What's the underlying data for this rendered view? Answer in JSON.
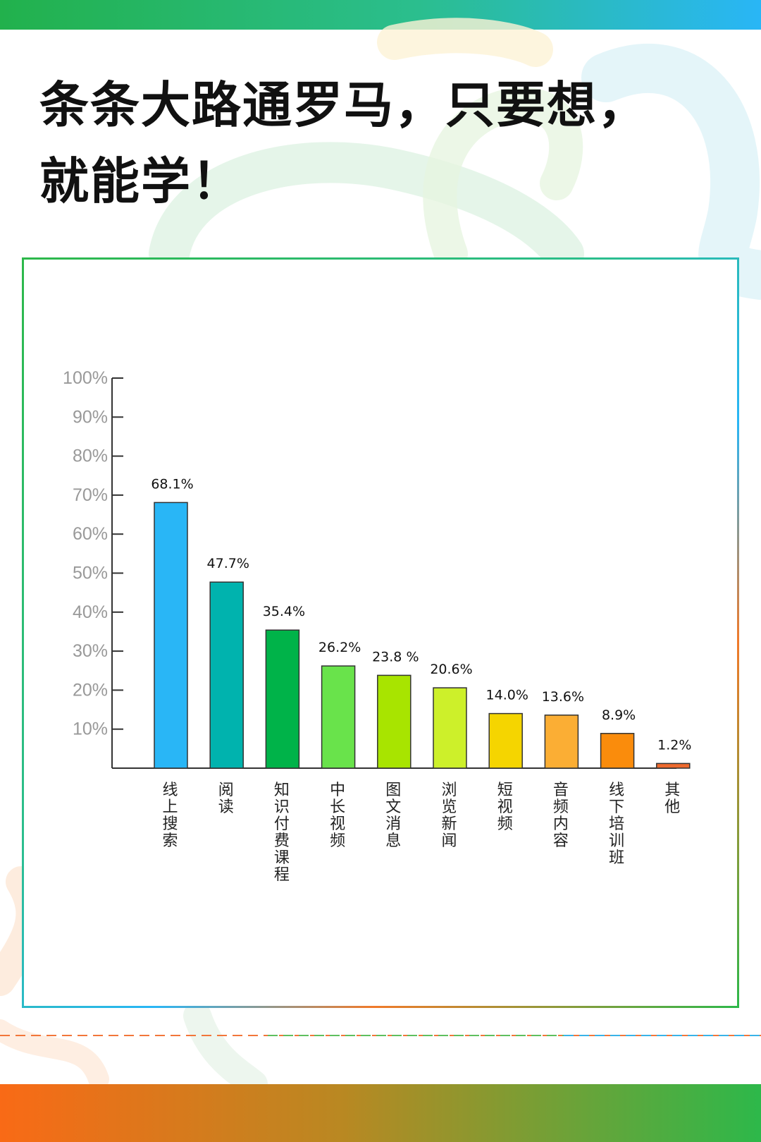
{
  "headline": {
    "line1": "条条大路通罗马，只要想，",
    "line2": "就能学！"
  },
  "chart_data": {
    "type": "bar",
    "categories": [
      "线上搜索",
      "阅读",
      "知识付费课程",
      "中长视频",
      "图文消息",
      "浏览新闻",
      "短视频",
      "音频内容",
      "线下培训班",
      "其他"
    ],
    "values": [
      68.1,
      47.7,
      35.4,
      26.2,
      23.8,
      20.6,
      14.0,
      13.6,
      8.9,
      1.2
    ],
    "value_labels": [
      "68.1%",
      "47.7%",
      "35.4%",
      "26.2%",
      "23.8 %",
      "20.6%",
      "14.0%",
      "13.6%",
      "8.9%",
      "1.2%"
    ],
    "bar_colors": [
      "#29b6f6",
      "#00b3ae",
      "#00b349",
      "#69e34b",
      "#a8e400",
      "#cdf02a",
      "#f5d500",
      "#fbae34",
      "#fa8c0c",
      "#ee6a2e"
    ],
    "y_ticks": [
      "10%",
      "20%",
      "30%",
      "40%",
      "50%",
      "60%",
      "70%",
      "80%",
      "90%",
      "100%"
    ],
    "ylim": [
      0,
      100
    ],
    "grid": false,
    "legend": "none"
  },
  "colors": {
    "top_bar": [
      "#22b14c",
      "#29b6f6"
    ],
    "bottom_bar": [
      "#f96a16",
      "#2db84a"
    ],
    "axis": "#333333",
    "tick_label": "#999999"
  }
}
